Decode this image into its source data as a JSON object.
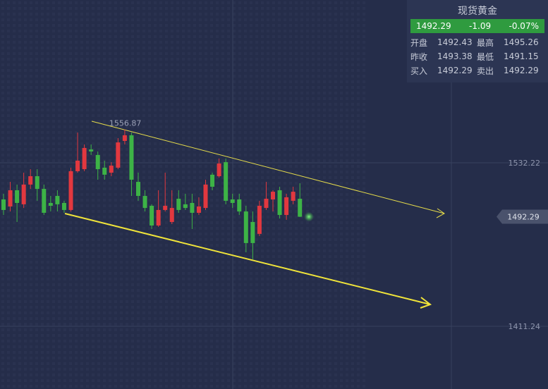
{
  "chart_data": {
    "type": "candlestick",
    "up_color": "#e2383f",
    "down_color": "#3db346",
    "ylim": [
      1364.8,
      1652.7
    ],
    "yticks": [
      1532.22,
      1411.24
    ],
    "grid": true,
    "open": [
      1505.1,
      1499.9,
      1511.9,
      1501.5,
      1516.1,
      1522.3,
      1512.9,
      1502.5,
      1507.7,
      1502.5,
      1497.3,
      1526.0,
      1527.5,
      1542.1,
      1538.0,
      1528.6,
      1524.9,
      1528.6,
      1548.4,
      1552.6,
      1518.1,
      1507.7,
      1500.4,
      1485.8,
      1497.3,
      1488.4,
      1505.6,
      1501.5,
      1502.5,
      1495.2,
      1498.8,
      1523.4,
      1522.3,
      1532.7,
      1505.1,
      1505.1,
      1496.2,
      1488.4,
      1479.6,
      1498.8,
      1505.1,
      1511.9,
      1493.6,
      1504.1,
      1505.6
    ],
    "high": [
      1509.3,
      1518.1,
      1516.1,
      1524.9,
      1527.5,
      1527.5,
      1516.1,
      1507.7,
      1511.9,
      1504.1,
      1528.6,
      1554.6,
      1545.8,
      1545.8,
      1540.6,
      1533.8,
      1532.7,
      1550.5,
      1556.87,
      1554.6,
      1524.9,
      1511.9,
      1501.5,
      1511.9,
      1524.9,
      1511.9,
      1511.9,
      1509.3,
      1509.3,
      1506.7,
      1519.7,
      1524.9,
      1535.4,
      1535.4,
      1509.3,
      1509.3,
      1500.4,
      1496.2,
      1504.1,
      1518.1,
      1511.9,
      1514.5,
      1509.3,
      1514.5,
      1517.1
    ],
    "low": [
      1493.6,
      1496.2,
      1488.4,
      1498.8,
      1512.9,
      1504.1,
      1493.6,
      1496.2,
      1496.2,
      1495.2,
      1496.2,
      1524.9,
      1526.0,
      1538.0,
      1519.7,
      1519.7,
      1522.3,
      1527.5,
      1545.8,
      1507.7,
      1504.1,
      1496.2,
      1483.2,
      1484.8,
      1496.2,
      1486.9,
      1495.2,
      1497.3,
      1483.2,
      1493.6,
      1497.3,
      1511.9,
      1521.3,
      1501.5,
      1498.8,
      1493.6,
      1466.0,
      1460.8,
      1478.0,
      1497.3,
      1496.2,
      1491.0,
      1490.0,
      1501.5,
      1492.1
    ],
    "close": [
      1497.3,
      1511.9,
      1502.5,
      1516.1,
      1522.3,
      1512.9,
      1495.2,
      1500.4,
      1501.5,
      1497.3,
      1526.0,
      1533.8,
      1543.2,
      1540.6,
      1527.5,
      1523.4,
      1530.1,
      1547.3,
      1552.6,
      1519.7,
      1507.7,
      1498.8,
      1485.8,
      1497.3,
      1500.4,
      1498.8,
      1497.3,
      1498.8,
      1495.2,
      1499.9,
      1516.1,
      1514.5,
      1531.7,
      1504.1,
      1502.5,
      1496.2,
      1472.8,
      1472.8,
      1500.4,
      1505.6,
      1510.8,
      1493.6,
      1506.7,
      1510.8,
      1492.29
    ]
  },
  "quote_panel": {
    "title": "现货黄金",
    "price": "1492.29",
    "change": "-1.09",
    "change_pct": "-0.07%",
    "rows": [
      [
        "开盘",
        "1492.43",
        "最高",
        "1495.26"
      ],
      [
        "昨收",
        "1493.38",
        "最低",
        "1491.15"
      ],
      [
        "买入",
        "1492.29",
        "卖出",
        "1492.29"
      ]
    ]
  }
}
